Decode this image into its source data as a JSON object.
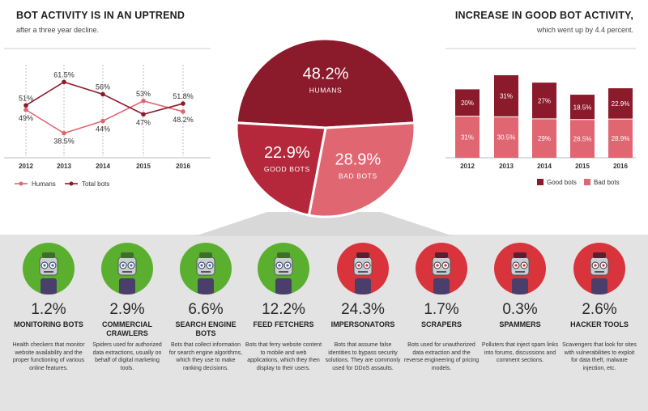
{
  "colors": {
    "dark": "#8b1a2b",
    "mid": "#b5283b",
    "light": "#e06672",
    "green": "#5ab02e",
    "red": "#d9343c",
    "gray": "#e3e3e3"
  },
  "left": {
    "title": "BOT ACTIVITY IS IN AN UPTREND",
    "subtitle": "after a three year decline."
  },
  "right": {
    "title": "INCREASE IN GOOD BOT ACTIVITY,",
    "subtitle": "which went up by 4.4 percent."
  },
  "chart_data": [
    {
      "type": "line",
      "categories": [
        "2012",
        "2013",
        "2014",
        "2015",
        "2016"
      ],
      "series": [
        {
          "name": "Humans",
          "values": [
            49,
            38.5,
            44,
            53,
            48.2
          ],
          "labels": [
            "49%",
            "38.5%",
            "44%",
            "53%",
            "48.2%"
          ],
          "color": "#e06672"
        },
        {
          "name": "Total bots",
          "values": [
            51,
            61.5,
            56,
            47,
            51.8
          ],
          "labels": [
            "51%",
            "61.5%",
            "56%",
            "47%",
            "51.8%"
          ],
          "color": "#8b1a2b"
        }
      ],
      "ylim": [
        30,
        70
      ],
      "legend": "bottom"
    },
    {
      "type": "pie",
      "slices": [
        {
          "label": "HUMANS",
          "value": 48.2,
          "text": "48.2%",
          "color": "#8b1a2b"
        },
        {
          "label": "BAD BOTS",
          "value": 28.9,
          "text": "28.9%",
          "color": "#e06672"
        },
        {
          "label": "GOOD BOTS",
          "value": 22.9,
          "text": "22.9%",
          "color": "#b5283b"
        }
      ]
    },
    {
      "type": "bar",
      "stacked": true,
      "categories": [
        "2012",
        "2013",
        "2014",
        "2015",
        "2016"
      ],
      "series": [
        {
          "name": "Good bots",
          "values": [
            20,
            31,
            27,
            18.5,
            22.9
          ],
          "labels": [
            "20%",
            "31%",
            "27%",
            "18.5%",
            "22.9%"
          ],
          "color": "#8b1a2b"
        },
        {
          "name": "Bad bots",
          "values": [
            31,
            30.5,
            29,
            28.5,
            28.9
          ],
          "labels": [
            "31%",
            "30.5%",
            "29%",
            "28.5%",
            "28.9%"
          ],
          "color": "#e06672"
        }
      ],
      "ylim": [
        0,
        65
      ],
      "legend": "bottom-right"
    }
  ],
  "bots": [
    {
      "pct": "1.2%",
      "name": "MONITORING BOTS",
      "desc": "Health checkers that monitor website availability and the proper functioning of various online features.",
      "kind": "good",
      "icon": "robot-doctor-icon"
    },
    {
      "pct": "2.9%",
      "name": "COMMERCIAL CRAWLERS",
      "desc": "Spiders used for authorized data extractions, usually on behalf of digital marketing tools.",
      "kind": "good",
      "icon": "robot-crawler-icon"
    },
    {
      "pct": "6.6%",
      "name": "SEARCH ENGINE BOTS",
      "desc": "Bots that collect information for search engine algorithms, which they use to make ranking decisions.",
      "kind": "good",
      "icon": "robot-detective-icon"
    },
    {
      "pct": "12.2%",
      "name": "FEED FETCHERS",
      "desc": "Bots that ferry website content to mobile and web applications, which they then display to their users.",
      "kind": "good",
      "icon": "robot-courier-icon"
    },
    {
      "pct": "24.3%",
      "name": "IMPERSONATORS",
      "desc": "Bots that assume false identities to bypass security solutions. They are commonly used for DDoS assaults.",
      "kind": "bad",
      "icon": "robot-impersonator-icon"
    },
    {
      "pct": "1.7%",
      "name": "SCRAPERS",
      "desc": "Bots used for unauthorized data extraction and the reverse engineering of pricing models.",
      "kind": "bad",
      "icon": "robot-burglar-icon"
    },
    {
      "pct": "0.3%",
      "name": "SPAMMERS",
      "desc": "Polluters that inject spam links into forums, discussions and comment sections.",
      "kind": "bad",
      "icon": "robot-spammer-icon"
    },
    {
      "pct": "2.6%",
      "name": "HACKER TOOLS",
      "desc": "Scavengers that look for sites with vulnerabilities to exploit for data theft, malware injection, etc.",
      "kind": "bad",
      "icon": "robot-hacker-icon"
    }
  ]
}
